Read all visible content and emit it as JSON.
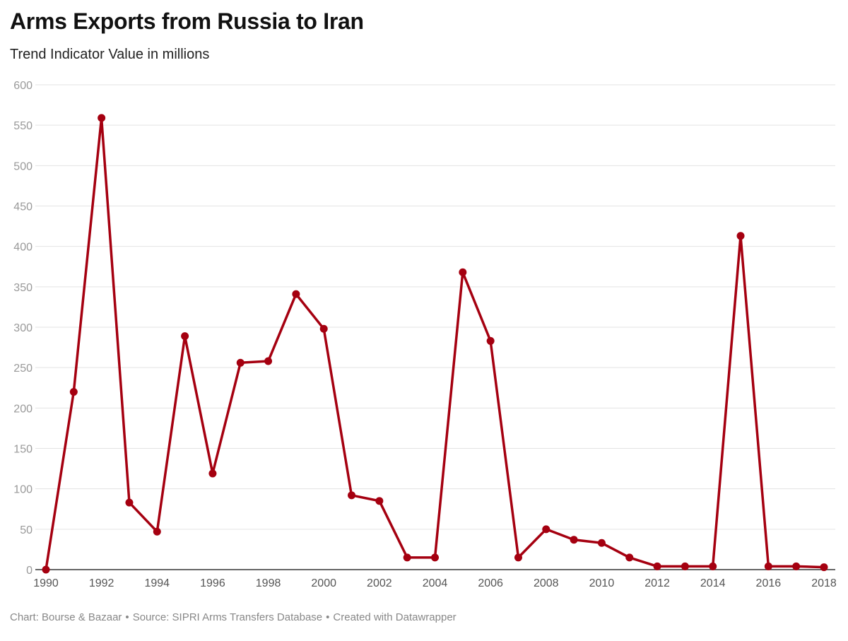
{
  "header": {
    "title": "Arms Exports from Russia to Iran",
    "subtitle": "Trend Indicator Value in millions"
  },
  "footer": {
    "chart_credit": "Chart: Bourse & Bazaar",
    "source": "Source: SIPRI Arms Transfers Database",
    "created_with": "Created with Datawrapper",
    "separator": "•"
  },
  "colors": {
    "line": "#a50010",
    "grid": "#e3e3e3",
    "axis": "#333333",
    "tick_label": "#999999",
    "x_tick_label": "#555555"
  },
  "chart_data": {
    "type": "line",
    "title": "Arms Exports from Russia to Iran",
    "subtitle": "Trend Indicator Value in millions",
    "xlabel": "",
    "ylabel": "",
    "xlim": [
      1990,
      2018
    ],
    "ylim": [
      0,
      600
    ],
    "y_ticks": [
      0,
      50,
      100,
      150,
      200,
      250,
      300,
      350,
      400,
      450,
      500,
      550,
      600
    ],
    "x_ticks": [
      1990,
      1992,
      1994,
      1996,
      1998,
      2000,
      2002,
      2004,
      2006,
      2008,
      2010,
      2012,
      2014,
      2016,
      2018
    ],
    "grid": true,
    "legend": "none",
    "series": [
      {
        "x": [
          1990,
          1991,
          1992,
          1993,
          1994,
          1995,
          1996,
          1997,
          1998,
          1999,
          2000,
          2001,
          2002,
          2003,
          2004,
          2005,
          2006,
          2007,
          2008,
          2009,
          2010,
          2011,
          2012,
          2013,
          2014,
          2015,
          2016,
          2017,
          2018
        ],
        "values": [
          0,
          220,
          559,
          83,
          47,
          289,
          119,
          256,
          258,
          341,
          298,
          92,
          85,
          15,
          15,
          368,
          283,
          15,
          50,
          37,
          33,
          15,
          4,
          4,
          4,
          413,
          4,
          4,
          3
        ]
      }
    ]
  }
}
